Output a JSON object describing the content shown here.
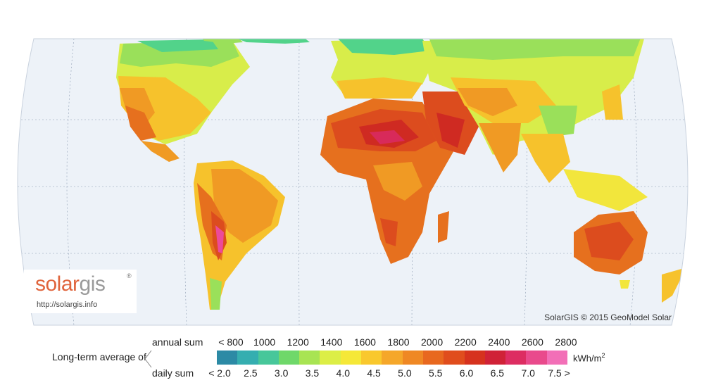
{
  "map": {
    "title": "",
    "ocean_color": "#edf2f8",
    "land_palette": [
      "#2f8fa8",
      "#36b6a8",
      "#52d38a",
      "#9ae05a",
      "#d8ed4a",
      "#f2e63c",
      "#f6c22c",
      "#f09a24",
      "#e6701e",
      "#dc4c1e",
      "#cf2a22",
      "#d82a5a",
      "#ec4a9a"
    ]
  },
  "logo": {
    "brand_part1": "solar",
    "brand_part2": "gis",
    "mark": "®",
    "url": "http://solargis.info"
  },
  "copyright": "SolarGIS © 2015 GeoModel Solar",
  "legend": {
    "title": "Long-term average of",
    "annual_label": "annual sum",
    "daily_label": "daily sum",
    "unit_prefix": "kWh/m",
    "unit_exp": "2",
    "annual_ticks": [
      "< 800",
      "1000",
      "1200",
      "1400",
      "1600",
      "1800",
      "2000",
      "2200",
      "2400",
      "2600",
      "2800"
    ],
    "daily_ticks": [
      "< 2.0",
      "2.5",
      "3.0",
      "3.5",
      "4.0",
      "4.5",
      "5.0",
      "5.5",
      "6.0",
      "6.5",
      "7.0",
      "7.5 >"
    ],
    "colors": [
      "#2c8aa5",
      "#35aeb0",
      "#47c79a",
      "#6fd86a",
      "#a8e453",
      "#dcee46",
      "#f5e838",
      "#f9c82d",
      "#f5a72a",
      "#ef8824",
      "#e8681f",
      "#e04d1d",
      "#d6321e",
      "#d02237",
      "#dd2d62",
      "#e94a8c",
      "#f26fb7"
    ]
  }
}
